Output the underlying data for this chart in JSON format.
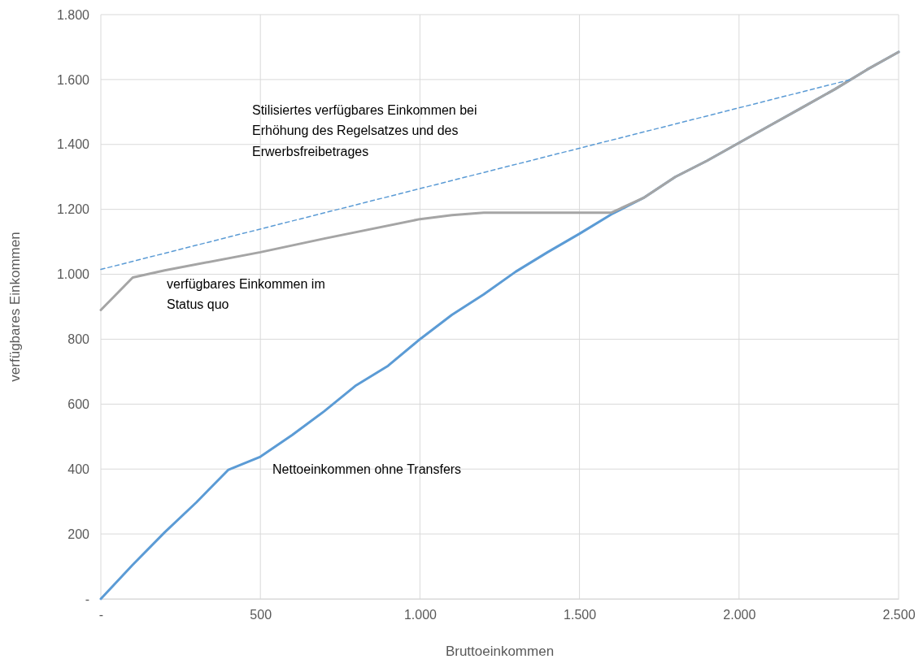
{
  "chart_data": {
    "type": "line",
    "xlabel": "Bruttoeinkommen",
    "ylabel": "verfügbares Einkommen",
    "xlim": [
      0,
      2500
    ],
    "ylim": [
      0,
      1800
    ],
    "xticks": [
      {
        "value": 0,
        "label": "-"
      },
      500,
      {
        "value": 1000,
        "label": "1.000"
      },
      {
        "value": 1500,
        "label": "1.500"
      },
      {
        "value": 2000,
        "label": "2.000"
      },
      {
        "value": 2500,
        "label": "2.500"
      }
    ],
    "yticks": [
      {
        "value": 0,
        "label": "-"
      },
      200,
      400,
      600,
      800,
      {
        "value": 1000,
        "label": "1.000"
      },
      {
        "value": 1200,
        "label": "1.200"
      },
      {
        "value": 1400,
        "label": "1.400"
      },
      {
        "value": 1600,
        "label": "1.600"
      },
      {
        "value": 1800,
        "label": "1.800"
      }
    ],
    "grid": true,
    "marker": "none",
    "series": [
      {
        "color": "#5b9bd5",
        "x": [
          0,
          100,
          200,
          300,
          400,
          500,
          600,
          700,
          800,
          900,
          1000,
          1100,
          1200,
          1300,
          1400,
          1500,
          1600,
          1700,
          1800,
          1900,
          2000,
          2100,
          2200,
          2300,
          2400,
          2500
        ],
        "values": [
          0,
          105,
          205,
          298,
          398,
          438,
          505,
          578,
          658,
          718,
          800,
          875,
          938,
          1008,
          1068,
          1125,
          1185,
          1235,
          1300,
          1350,
          1405,
          1460,
          1515,
          1570,
          1630,
          1685
        ]
      },
      {
        "color": "#a5a5a5",
        "x": [
          0,
          100,
          200,
          500,
          700,
          1000,
          1100,
          1200,
          1300,
          1600,
          1700,
          1800,
          1900,
          2000,
          2100,
          2200,
          2300,
          2400,
          2500
        ],
        "values": [
          890,
          990,
          1012,
          1068,
          1110,
          1170,
          1182,
          1190,
          1190,
          1190,
          1235,
          1300,
          1350,
          1405,
          1460,
          1515,
          1570,
          1630,
          1685
        ]
      },
      {
        "color": "#5b9bd5",
        "line_style": "dashed",
        "x": [
          0,
          2350
        ],
        "values": [
          1015,
          1600
        ]
      }
    ],
    "annotations": [
      "Stilisiertes verfügbares Einkommen bei\nErhöhung des Regelsatzes und des\nErwerbsfreibetrages",
      "verfügbares Einkommen im\nStatus quo",
      "Nettoeinkommen ohne Transfers"
    ]
  }
}
